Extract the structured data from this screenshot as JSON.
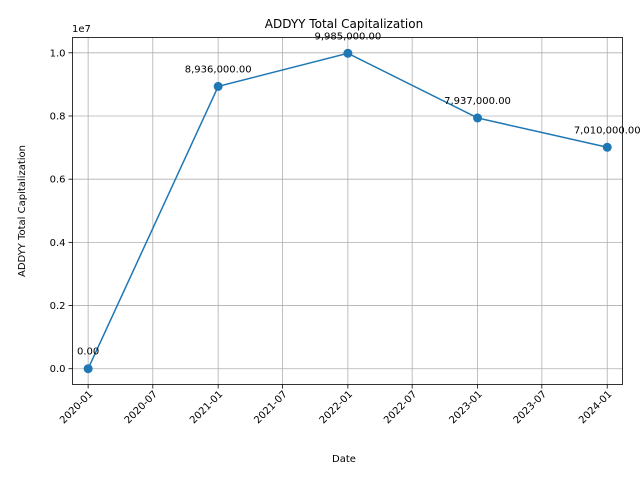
{
  "chart_data": {
    "type": "line",
    "title": "ADDYY Total Capitalization",
    "xlabel": "Date",
    "ylabel": "ADDYY Total Capitalization",
    "y_offset_label": "1e7",
    "y_multiplier": 10000000,
    "grid": true,
    "color": "#1f77b4",
    "x": [
      "2020-01-01",
      "2021-01-01",
      "2022-01-01",
      "2023-01-01",
      "2024-01-01"
    ],
    "values": [
      0,
      8936000,
      9985000,
      7937000,
      7010000
    ],
    "data_labels": [
      "0.00",
      "8,936,000.00",
      "9,985,000.00",
      "7,937,000.00",
      "7,010,000.00"
    ],
    "xlim": [
      "2019-11-18",
      "2024-02-13"
    ],
    "ylim": [
      -499250,
      10484250
    ],
    "x_ticks": [
      {
        "date": "2020-01-01",
        "label": "2020-01"
      },
      {
        "date": "2020-07-01",
        "label": "2020-07"
      },
      {
        "date": "2021-01-01",
        "label": "2021-01"
      },
      {
        "date": "2021-07-01",
        "label": "2021-07"
      },
      {
        "date": "2022-01-01",
        "label": "2022-01"
      },
      {
        "date": "2022-07-01",
        "label": "2022-07"
      },
      {
        "date": "2023-01-01",
        "label": "2023-01"
      },
      {
        "date": "2023-07-01",
        "label": "2023-07"
      },
      {
        "date": "2024-01-01",
        "label": "2024-01"
      }
    ],
    "y_ticks": [
      {
        "value": 0,
        "label": "0.0"
      },
      {
        "value": 2000000,
        "label": "0.2"
      },
      {
        "value": 4000000,
        "label": "0.4"
      },
      {
        "value": 6000000,
        "label": "0.6"
      },
      {
        "value": 8000000,
        "label": "0.8"
      },
      {
        "value": 10000000,
        "label": "1.0"
      }
    ]
  }
}
